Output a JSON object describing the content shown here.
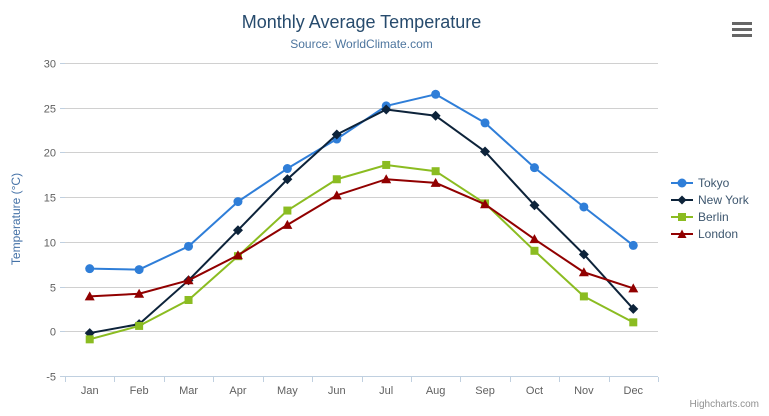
{
  "chart_data": {
    "type": "line",
    "title": "Monthly Average Temperature",
    "subtitle": "Source: WorldClimate.com",
    "xlabel": "",
    "ylabel": "Temperature (°C)",
    "ylim": [
      -5,
      30
    ],
    "y_tick_step": 5,
    "grid": true,
    "legend_position": "right",
    "categories": [
      "Jan",
      "Feb",
      "Mar",
      "Apr",
      "May",
      "Jun",
      "Jul",
      "Aug",
      "Sep",
      "Oct",
      "Nov",
      "Dec"
    ],
    "series": [
      {
        "name": "Tokyo",
        "color": "#2f7ed8",
        "marker": "circle",
        "values": [
          7.0,
          6.9,
          9.5,
          14.5,
          18.2,
          21.5,
          25.2,
          26.5,
          23.3,
          18.3,
          13.9,
          9.6
        ]
      },
      {
        "name": "New York",
        "color": "#0d233a",
        "marker": "diamond",
        "values": [
          -0.2,
          0.8,
          5.7,
          11.3,
          17.0,
          22.0,
          24.8,
          24.1,
          20.1,
          14.1,
          8.6,
          2.5
        ]
      },
      {
        "name": "Berlin",
        "color": "#8bbc21",
        "marker": "square",
        "values": [
          -0.9,
          0.6,
          3.5,
          8.4,
          13.5,
          17.0,
          18.6,
          17.9,
          14.3,
          9.0,
          3.9,
          1.0
        ]
      },
      {
        "name": "London",
        "color": "#910000",
        "marker": "triangle",
        "values": [
          3.9,
          4.2,
          5.7,
          8.5,
          11.9,
          15.2,
          17.0,
          16.6,
          14.2,
          10.3,
          6.6,
          4.8
        ]
      }
    ]
  },
  "credits": {
    "label": "Highcharts.com"
  },
  "colors": {
    "title": "#274b6d",
    "subtitle": "#4d759e",
    "axis_title": "#4572a7",
    "axis_label": "#606060",
    "grid": "#d0d0d0",
    "axis_line": "#c0d0e0",
    "legend_text": "#3e576f",
    "credits": "#909090",
    "export_icon": "#666666",
    "background": "#ffffff"
  }
}
